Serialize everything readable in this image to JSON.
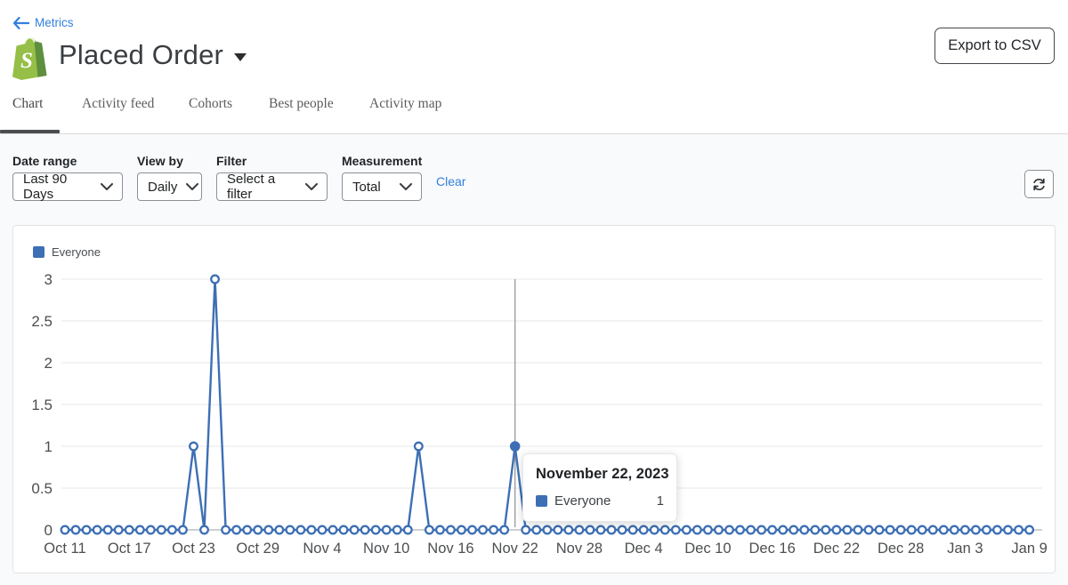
{
  "header": {
    "back_label": "Metrics",
    "title": "Placed Order",
    "export_button": "Export to CSV"
  },
  "tabs": {
    "items": [
      {
        "label": "Chart",
        "active": true
      },
      {
        "label": "Activity feed",
        "active": false
      },
      {
        "label": "Cohorts",
        "active": false
      },
      {
        "label": "Best people",
        "active": false
      },
      {
        "label": "Activity map",
        "active": false
      }
    ]
  },
  "filters": {
    "fields": [
      {
        "label": "Date range",
        "value": "Last 90 Days"
      },
      {
        "label": "View by",
        "value": "Daily"
      },
      {
        "label": "Filter",
        "value": "Select a filter"
      },
      {
        "label": "Measurement",
        "value": "Total"
      }
    ],
    "clear_label": "Clear"
  },
  "legend": {
    "label": "Everyone"
  },
  "tooltip": {
    "title": "November 22, 2023",
    "series": "Everyone",
    "value": "1"
  },
  "colors": {
    "series_blue": "#3d6fb5",
    "link_blue": "#3180dd",
    "grid": "#ececec",
    "zero_line": "#bfc1c3",
    "crosshair": "#8f9193",
    "axis_text": "#4c4e50",
    "logo_green": "#95bf47",
    "logo_dark_green": "#5e8e3e"
  },
  "chart_data": {
    "type": "line",
    "title": "Placed Order",
    "x_tick_labels": [
      "Oct 11",
      "Oct 17",
      "Oct 23",
      "Oct 29",
      "Nov 4",
      "Nov 10",
      "Nov 16",
      "Nov 22",
      "Nov 28",
      "Dec 4",
      "Dec 10",
      "Dec 16",
      "Dec 22",
      "Dec 28",
      "Jan 3",
      "Jan 9"
    ],
    "x_tick_every": 6,
    "num_points": 91,
    "y_ticks": [
      0,
      0.5,
      1,
      1.5,
      2,
      2.5,
      3
    ],
    "ylim": [
      0,
      3
    ],
    "grid": true,
    "legend_position": "top-left",
    "series": [
      {
        "name": "Everyone",
        "color": "#3d6fb5",
        "values": [
          0,
          0,
          0,
          0,
          0,
          0,
          0,
          0,
          0,
          0,
          0,
          0,
          1,
          0,
          3,
          0,
          0,
          0,
          0,
          0,
          0,
          0,
          0,
          0,
          0,
          0,
          0,
          0,
          0,
          0,
          0,
          0,
          0,
          1,
          0,
          0,
          0,
          0,
          0,
          0,
          0,
          0,
          1,
          0,
          0,
          0,
          0,
          0,
          0,
          0,
          0,
          0,
          0,
          0,
          0,
          0,
          0,
          0,
          0,
          0,
          0,
          0,
          0,
          0,
          0,
          0,
          0,
          0,
          0,
          0,
          0,
          0,
          0,
          0,
          0,
          0,
          0,
          0,
          0,
          0,
          0,
          0,
          0,
          0,
          0,
          0,
          0,
          0,
          0,
          0,
          0
        ]
      }
    ],
    "nonzero_points": {
      "Oct 23": 1,
      "Oct 25": 3,
      "Nov 13": 1,
      "Nov 22": 1
    },
    "hovered_point": {
      "day_index": 42,
      "date": "November 22, 2023",
      "series": "Everyone",
      "value": 1
    }
  }
}
